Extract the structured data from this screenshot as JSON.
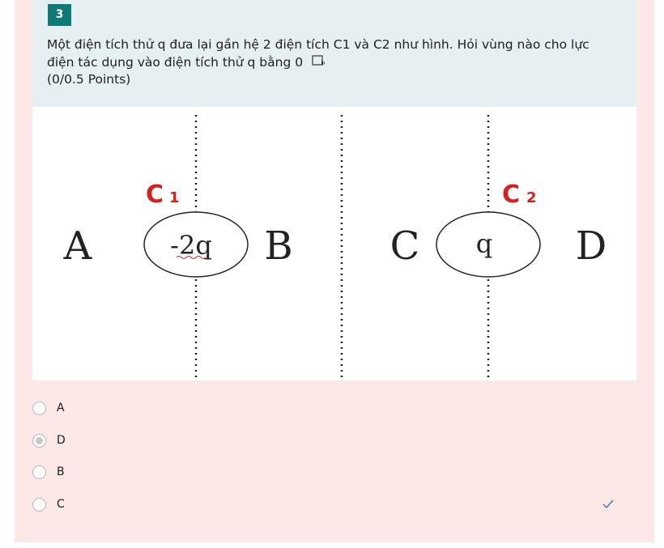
{
  "question": {
    "number": "3",
    "text": "Một điện tích thử q đưa lại gần hệ 2 điện tích C1 và C2 như hình. Hỏi vùng nào cho lực điện tác dụng vào điện tích thử q bằng 0",
    "read_aloud_icon": "immersive-reader-icon",
    "points": "(0/0.5 Points)"
  },
  "figure": {
    "region_a": "A",
    "region_b": "B",
    "region_c": "C",
    "region_d": "D",
    "charge1_label": "C",
    "charge1_sub": "1",
    "charge1_value": "-2q",
    "charge2_label": "C",
    "charge2_sub": "2",
    "charge2_value": "q"
  },
  "options": [
    {
      "label": "A",
      "selected": false
    },
    {
      "label": "D",
      "selected": true
    },
    {
      "label": "B",
      "selected": false
    },
    {
      "label": "C",
      "selected": false
    }
  ],
  "colors": {
    "card_bg": "#fde8e8",
    "header_bg": "#e6eff1",
    "badge": "#0d7a75",
    "charge_label": "#d42020",
    "check": "#2e7db8"
  },
  "result_icon": "checkmark-icon"
}
